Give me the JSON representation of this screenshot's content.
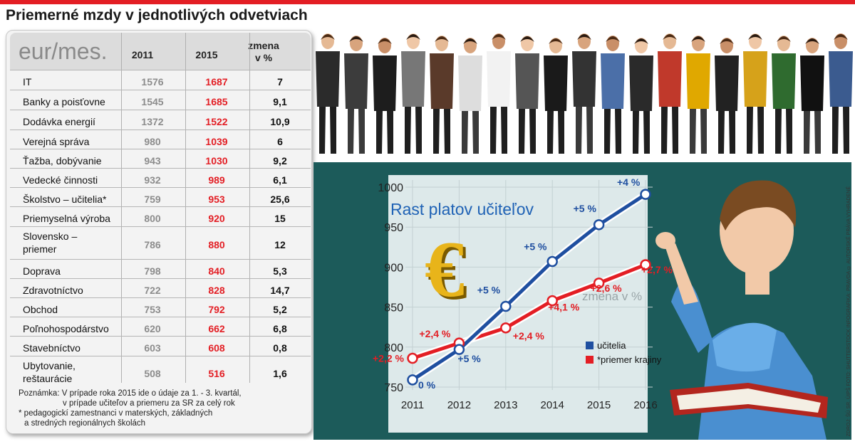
{
  "title": "Priemerné mzdy v jednotlivých odvetviach",
  "table": {
    "unit": "eur/mes.",
    "col_2011": "2011",
    "col_2015": "2015",
    "col_change_line1": "zmena",
    "col_change_line2": "v %",
    "rows": [
      {
        "name": "IT",
        "v2011": "1576",
        "v2015": "1687",
        "change": "7"
      },
      {
        "name": "Banky a poisťovne",
        "v2011": "1545",
        "v2015": "1685",
        "change": "9,1"
      },
      {
        "name": "Dodávka energií",
        "v2011": "1372",
        "v2015": "1522",
        "change": "10,9"
      },
      {
        "name": "Verejná správa",
        "v2011": "980",
        "v2015": "1039",
        "change": "6"
      },
      {
        "name": "Ťažba, dobývanie",
        "v2011": "943",
        "v2015": "1030",
        "change": "9,2"
      },
      {
        "name": "Vedecké činnosti",
        "v2011": "932",
        "v2015": "989",
        "change": "6,1"
      },
      {
        "name": "Školstvo – učitelia*",
        "v2011": "759",
        "v2015": "953",
        "change": "25,6"
      },
      {
        "name": "Priemyselná výroba",
        "v2011": "800",
        "v2015": "920",
        "change": "15"
      },
      {
        "name": "Slovensko –",
        "name2": "priemer",
        "v2011": "786",
        "v2015": "880",
        "change": "12"
      },
      {
        "name": "Doprava",
        "v2011": "798",
        "v2015": "840",
        "change": "5,3"
      },
      {
        "name": "Zdravotníctvo",
        "v2011": "722",
        "v2015": "828",
        "change": "14,7"
      },
      {
        "name": "Obchod",
        "v2011": "753",
        "v2015": "792",
        "change": "5,2"
      },
      {
        "name": "Poľnohospodárstvo",
        "v2011": "620",
        "v2015": "662",
        "change": "6,8"
      },
      {
        "name": "Stavebníctvo",
        "v2011": "603",
        "v2015": "608",
        "change": "0,8"
      },
      {
        "name": "Ubytovanie,",
        "name2": "reštaurácie",
        "v2011": "508",
        "v2015": "516",
        "change": "1,6"
      }
    ]
  },
  "note": {
    "line1": "Poznámka: V prípade roka 2015 ide o údaje za 1. - 3. kvartál,",
    "line2": "v prípade učiteľov a priemeru za SR za celý rok",
    "line3": "* pedagogickí zamestnanci v materských, základných",
    "line4": "a stredných regionálnych školách"
  },
  "credit": "ZDROJ: ŠÚ SR, ÚIPŠ  FOTO: SHUTTERSTOCK  INFOGRAFIKA: PRAVDA © AUTORSKÉ PRÁVA VYHRADENÉ",
  "colors": {
    "teachers": "#1f4fa0",
    "average": "#e31e24",
    "accent": "#e31e24",
    "board_frame": "#1c5b5a"
  },
  "chart_data": {
    "type": "line",
    "title": "Rast platov učiteľov",
    "subtitle": "zmena v %",
    "categories": [
      "2011",
      "2012",
      "2013",
      "2014",
      "2015",
      "2016"
    ],
    "ylim": [
      750,
      1000
    ],
    "yticks": [
      750,
      800,
      850,
      900,
      950,
      1000
    ],
    "series": [
      {
        "name": "učitelia",
        "color": "#1f4fa0",
        "values": [
          759,
          797,
          851,
          907,
          953,
          991
        ],
        "labels": [
          "0 %",
          "+5 %",
          "+5 %",
          "+5 %",
          "+5 %",
          "+4 %"
        ]
      },
      {
        "name": "*priemer krajiny",
        "color": "#e31e24",
        "values": [
          786,
          805,
          824,
          858,
          880,
          903
        ],
        "labels": [
          "+2,2 %",
          "+2,4 %",
          "+2,4 %",
          "+4,1 %",
          "+2,6 %",
          "+2,7 %"
        ]
      }
    ],
    "currency_icon": "euro-sign-icon"
  }
}
